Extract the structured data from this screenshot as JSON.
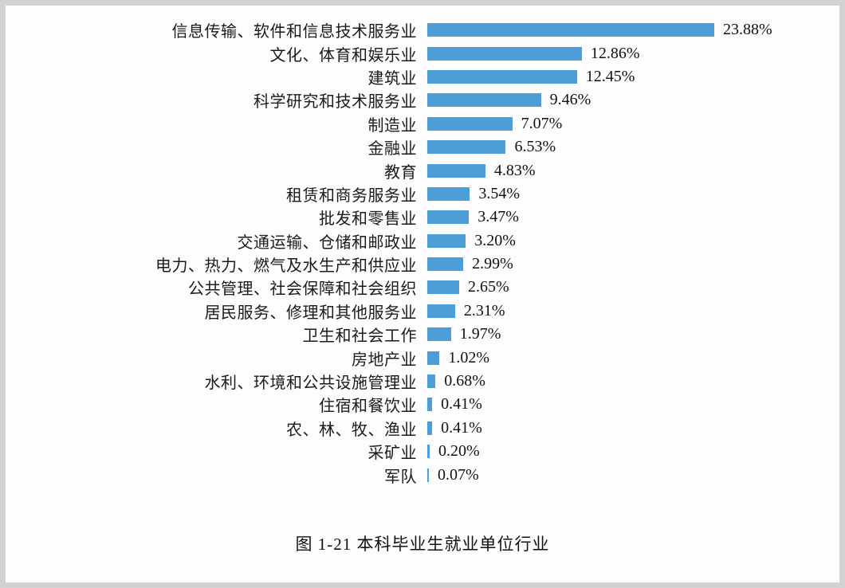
{
  "chart_data": {
    "type": "bar",
    "orientation": "horizontal",
    "title": "图 1-21    本科毕业生就业单位行业",
    "xlabel": "",
    "ylabel": "",
    "xlim": [
      0,
      25
    ],
    "grid": false,
    "legend": "none",
    "bar_color": "#4d9ed6",
    "categories": [
      "信息传输、软件和信息技术服务业",
      "文化、体育和娱乐业",
      "建筑业",
      "科学研究和技术服务业",
      "制造业",
      "金融业",
      "教育",
      "租赁和商务服务业",
      "批发和零售业",
      "交通运输、仓储和邮政业",
      "电力、热力、燃气及水生产和供应业",
      "公共管理、社会保障和社会组织",
      "居民服务、修理和其他服务业",
      "卫生和社会工作",
      "房地产业",
      "水利、环境和公共设施管理业",
      "住宿和餐饮业",
      "农、林、牧、渔业",
      "采矿业",
      "军队"
    ],
    "values": [
      23.88,
      12.86,
      12.45,
      9.46,
      7.07,
      6.53,
      4.83,
      3.54,
      3.47,
      3.2,
      2.99,
      2.65,
      2.31,
      1.97,
      1.02,
      0.68,
      0.41,
      0.41,
      0.2,
      0.07
    ],
    "value_labels": [
      "23.88%",
      "12.86%",
      "12.45%",
      "9.46%",
      "7.07%",
      "6.53%",
      "4.83%",
      "3.54%",
      "3.47%",
      "3.20%",
      "2.99%",
      "2.65%",
      "2.31%",
      "1.97%",
      "1.02%",
      "0.68%",
      "0.41%",
      "0.41%",
      "0.20%",
      "0.07%"
    ]
  },
  "caption": "图 1-21    本科毕业生就业单位行业"
}
